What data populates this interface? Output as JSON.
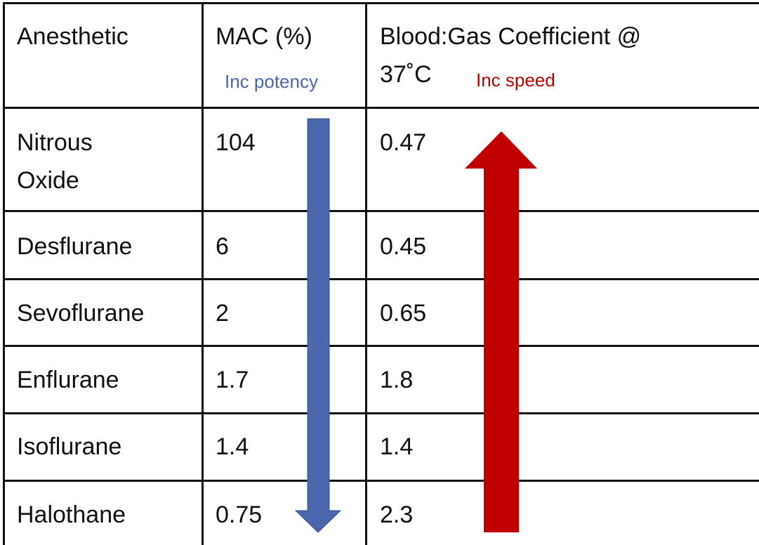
{
  "table": {
    "headers": [
      "Anesthetic",
      "MAC (%)",
      "Blood:Gas Coefficient @ 37˚C"
    ],
    "header_lines": {
      "col3_line1": "Blood:Gas Coefficient @",
      "col3_line2": "37˚C"
    },
    "annotations": {
      "mac": {
        "text": "Inc potency",
        "color": "#4a66ad",
        "arrow": "down"
      },
      "blood_gas": {
        "text": "Inc speed",
        "color": "#c00000",
        "arrow": "up"
      }
    },
    "rows": [
      {
        "name_line1": "Nitrous",
        "name_line2": "Oxide",
        "mac": "104",
        "bg": "0.47"
      },
      {
        "name_line1": "Desflurane",
        "mac": "6",
        "bg": "0.45"
      },
      {
        "name_line1": "Sevoflurane",
        "mac": "2",
        "bg": "0.65"
      },
      {
        "name_line1": "Enflurane",
        "mac": "1.7",
        "bg": "1.8"
      },
      {
        "name_line1": "Isoflurane",
        "mac": "1.4",
        "bg": "1.4"
      },
      {
        "name_line1": "Halothane",
        "mac": "0.75",
        "bg": "2.3"
      }
    ]
  }
}
